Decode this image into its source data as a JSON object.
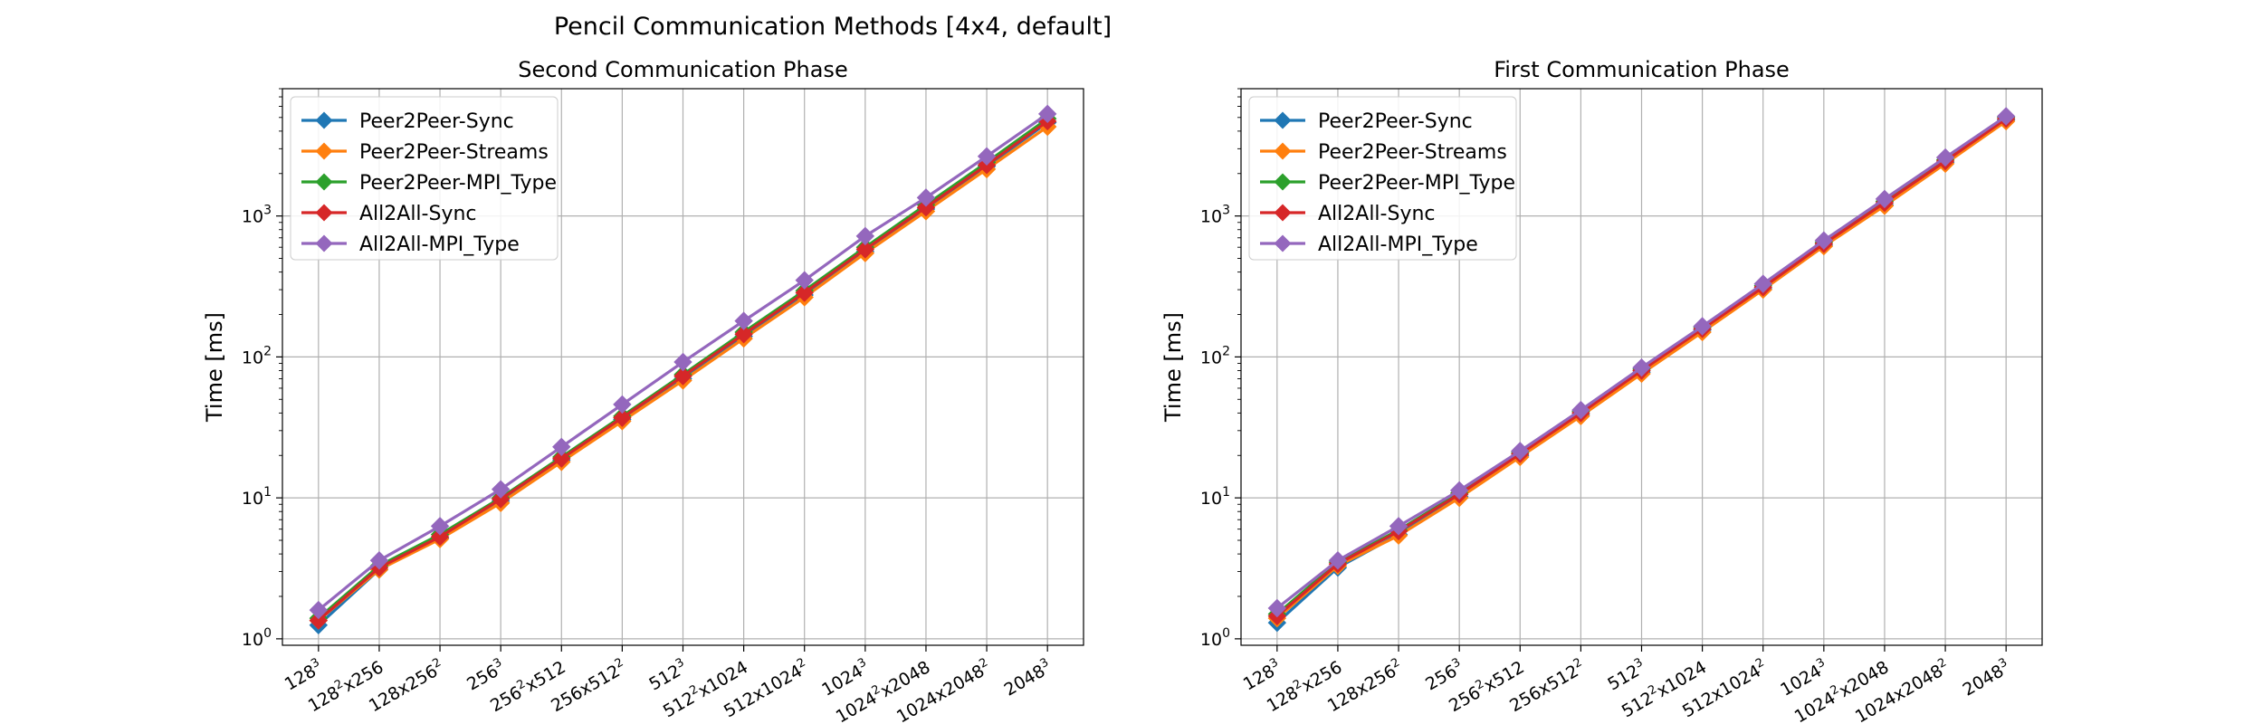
{
  "figure": {
    "title": "Pencil Communication Methods [4x4, default]"
  },
  "chart_data": [
    {
      "type": "line",
      "title": "Second Communication Phase",
      "xlabel": "",
      "ylabel": "Time [ms]",
      "yscale": "log",
      "ylim": [
        0.9,
        8000
      ],
      "yticks": [
        {
          "value": 1,
          "base": "10",
          "exp": "0"
        },
        {
          "value": 10,
          "base": "10",
          "exp": "1"
        },
        {
          "value": 100,
          "base": "10",
          "exp": "2"
        },
        {
          "value": 1000,
          "base": "10",
          "exp": "3"
        }
      ],
      "grid": true,
      "legend": "upper-left",
      "categories": [
        {
          "base": "128",
          "sup": "3",
          "rest": ""
        },
        {
          "base": "128",
          "sup": "2",
          "rest": "x256"
        },
        {
          "base": "128x256",
          "sup": "2",
          "rest": ""
        },
        {
          "base": "256",
          "sup": "3",
          "rest": ""
        },
        {
          "base": "256",
          "sup": "2",
          "rest": "x512"
        },
        {
          "base": "256x512",
          "sup": "2",
          "rest": ""
        },
        {
          "base": "512",
          "sup": "3",
          "rest": ""
        },
        {
          "base": "512",
          "sup": "2",
          "rest": "x1024"
        },
        {
          "base": "512x1024",
          "sup": "2",
          "rest": ""
        },
        {
          "base": "1024",
          "sup": "3",
          "rest": ""
        },
        {
          "base": "1024",
          "sup": "2",
          "rest": "x2048"
        },
        {
          "base": "1024x2048",
          "sup": "2",
          "rest": ""
        },
        {
          "base": "2048",
          "sup": "3",
          "rest": ""
        }
      ],
      "series": [
        {
          "name": "Peer2Peer-Sync",
          "color": "#1f77b4",
          "values": [
            1.25,
            3.1,
            5.2,
            9.5,
            18.5,
            36,
            70,
            140,
            275,
            560,
            1120,
            2250,
            4600
          ]
        },
        {
          "name": "Peer2Peer-Streams",
          "color": "#ff7f0e",
          "values": [
            1.35,
            3.1,
            5.1,
            9.2,
            18,
            35,
            68,
            135,
            265,
            545,
            1080,
            2150,
            4300
          ]
        },
        {
          "name": "Peer2Peer-MPI_Type",
          "color": "#2ca02c",
          "values": [
            1.4,
            3.3,
            5.5,
            10,
            19.5,
            38,
            75,
            150,
            295,
            600,
            1200,
            2400,
            4900
          ]
        },
        {
          "name": "All2All-Sync",
          "color": "#d62728",
          "values": [
            1.35,
            3.2,
            5.3,
            9.8,
            19,
            37,
            73,
            145,
            285,
            580,
            1150,
            2300,
            4700
          ]
        },
        {
          "name": "All2All-MPI_Type",
          "color": "#9467bd",
          "values": [
            1.6,
            3.6,
            6.3,
            11.5,
            23,
            46,
            92,
            180,
            350,
            720,
            1350,
            2650,
            5300
          ]
        }
      ]
    },
    {
      "type": "line",
      "title": "First Communication Phase",
      "xlabel": "",
      "ylabel": "Time [ms]",
      "yscale": "log",
      "ylim": [
        0.9,
        8000
      ],
      "yticks": [
        {
          "value": 1,
          "base": "10",
          "exp": "0"
        },
        {
          "value": 10,
          "base": "10",
          "exp": "1"
        },
        {
          "value": 100,
          "base": "10",
          "exp": "2"
        },
        {
          "value": 1000,
          "base": "10",
          "exp": "3"
        }
      ],
      "grid": true,
      "legend": "upper-left",
      "categories": [
        {
          "base": "128",
          "sup": "3",
          "rest": ""
        },
        {
          "base": "128",
          "sup": "2",
          "rest": "x256"
        },
        {
          "base": "128x256",
          "sup": "2",
          "rest": ""
        },
        {
          "base": "256",
          "sup": "3",
          "rest": ""
        },
        {
          "base": "256",
          "sup": "2",
          "rest": "x512"
        },
        {
          "base": "256x512",
          "sup": "2",
          "rest": ""
        },
        {
          "base": "512",
          "sup": "3",
          "rest": ""
        },
        {
          "base": "512",
          "sup": "2",
          "rest": "x1024"
        },
        {
          "base": "512x1024",
          "sup": "2",
          "rest": ""
        },
        {
          "base": "1024",
          "sup": "3",
          "rest": ""
        },
        {
          "base": "1024",
          "sup": "2",
          "rest": "x2048"
        },
        {
          "base": "1024x2048",
          "sup": "2",
          "rest": ""
        },
        {
          "base": "2048",
          "sup": "3",
          "rest": ""
        }
      ],
      "series": [
        {
          "name": "Peer2Peer-Sync",
          "color": "#1f77b4",
          "values": [
            1.3,
            3.2,
            5.5,
            10.2,
            20,
            39,
            78,
            155,
            305,
            620,
            1200,
            2400,
            4800
          ]
        },
        {
          "name": "Peer2Peer-Streams",
          "color": "#ff7f0e",
          "values": [
            1.4,
            3.3,
            5.4,
            10,
            19.5,
            38,
            76,
            150,
            300,
            610,
            1180,
            2350,
            4700
          ]
        },
        {
          "name": "Peer2Peer-MPI_Type",
          "color": "#2ca02c",
          "values": [
            1.5,
            3.5,
            5.9,
            10.8,
            21,
            41,
            82,
            162,
            320,
            650,
            1270,
            2500,
            5000
          ]
        },
        {
          "name": "All2All-Sync",
          "color": "#d62728",
          "values": [
            1.45,
            3.4,
            5.8,
            10.6,
            20.5,
            40,
            80,
            158,
            312,
            635,
            1240,
            2450,
            4900
          ]
        },
        {
          "name": "All2All-MPI_Type",
          "color": "#9467bd",
          "values": [
            1.65,
            3.6,
            6.3,
            11.3,
            21.5,
            42,
            84,
            165,
            330,
            670,
            1320,
            2600,
            5100
          ]
        }
      ]
    }
  ]
}
